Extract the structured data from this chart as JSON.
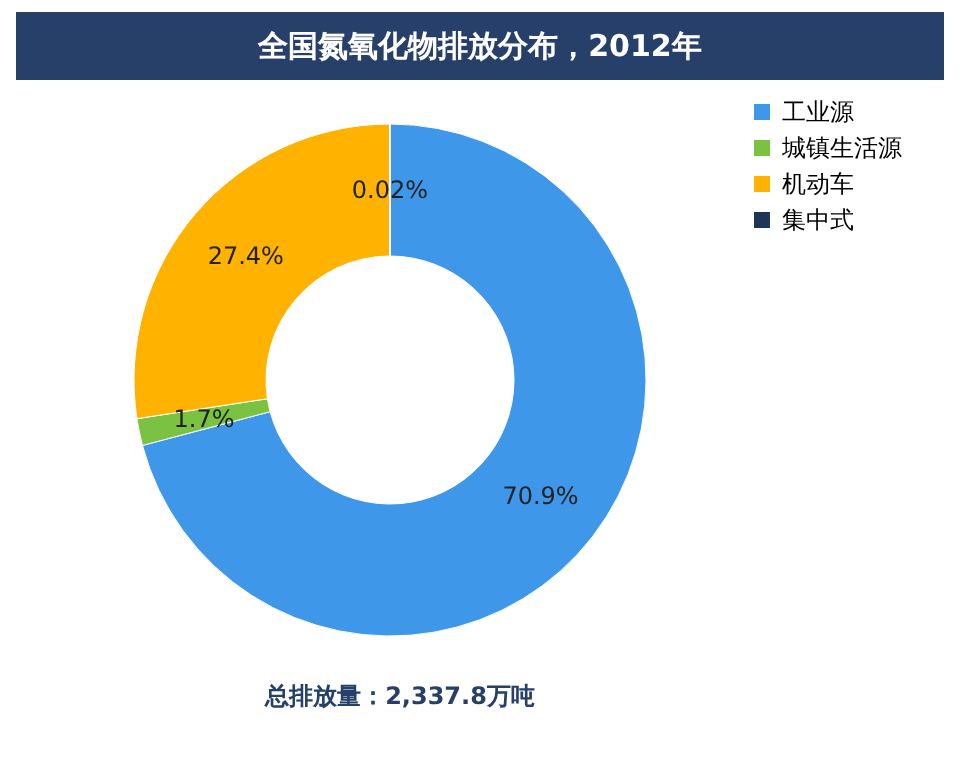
{
  "chart_data": {
    "type": "donut",
    "title": "全国氮氧化物排放分布，2012年",
    "categories": [
      "工业源",
      "城镇生活源",
      "机动车",
      "集中式"
    ],
    "values": [
      70.9,
      1.7,
      27.4,
      0.02
    ],
    "value_labels": [
      "70.9%",
      "1.7%",
      "27.4%",
      "0.02%"
    ],
    "colors": [
      "#3f97ea",
      "#7cc242",
      "#ffb300",
      "#1f3558"
    ],
    "legend": "right",
    "annotations": [
      "总排放量：2,337.8万吨"
    ]
  }
}
